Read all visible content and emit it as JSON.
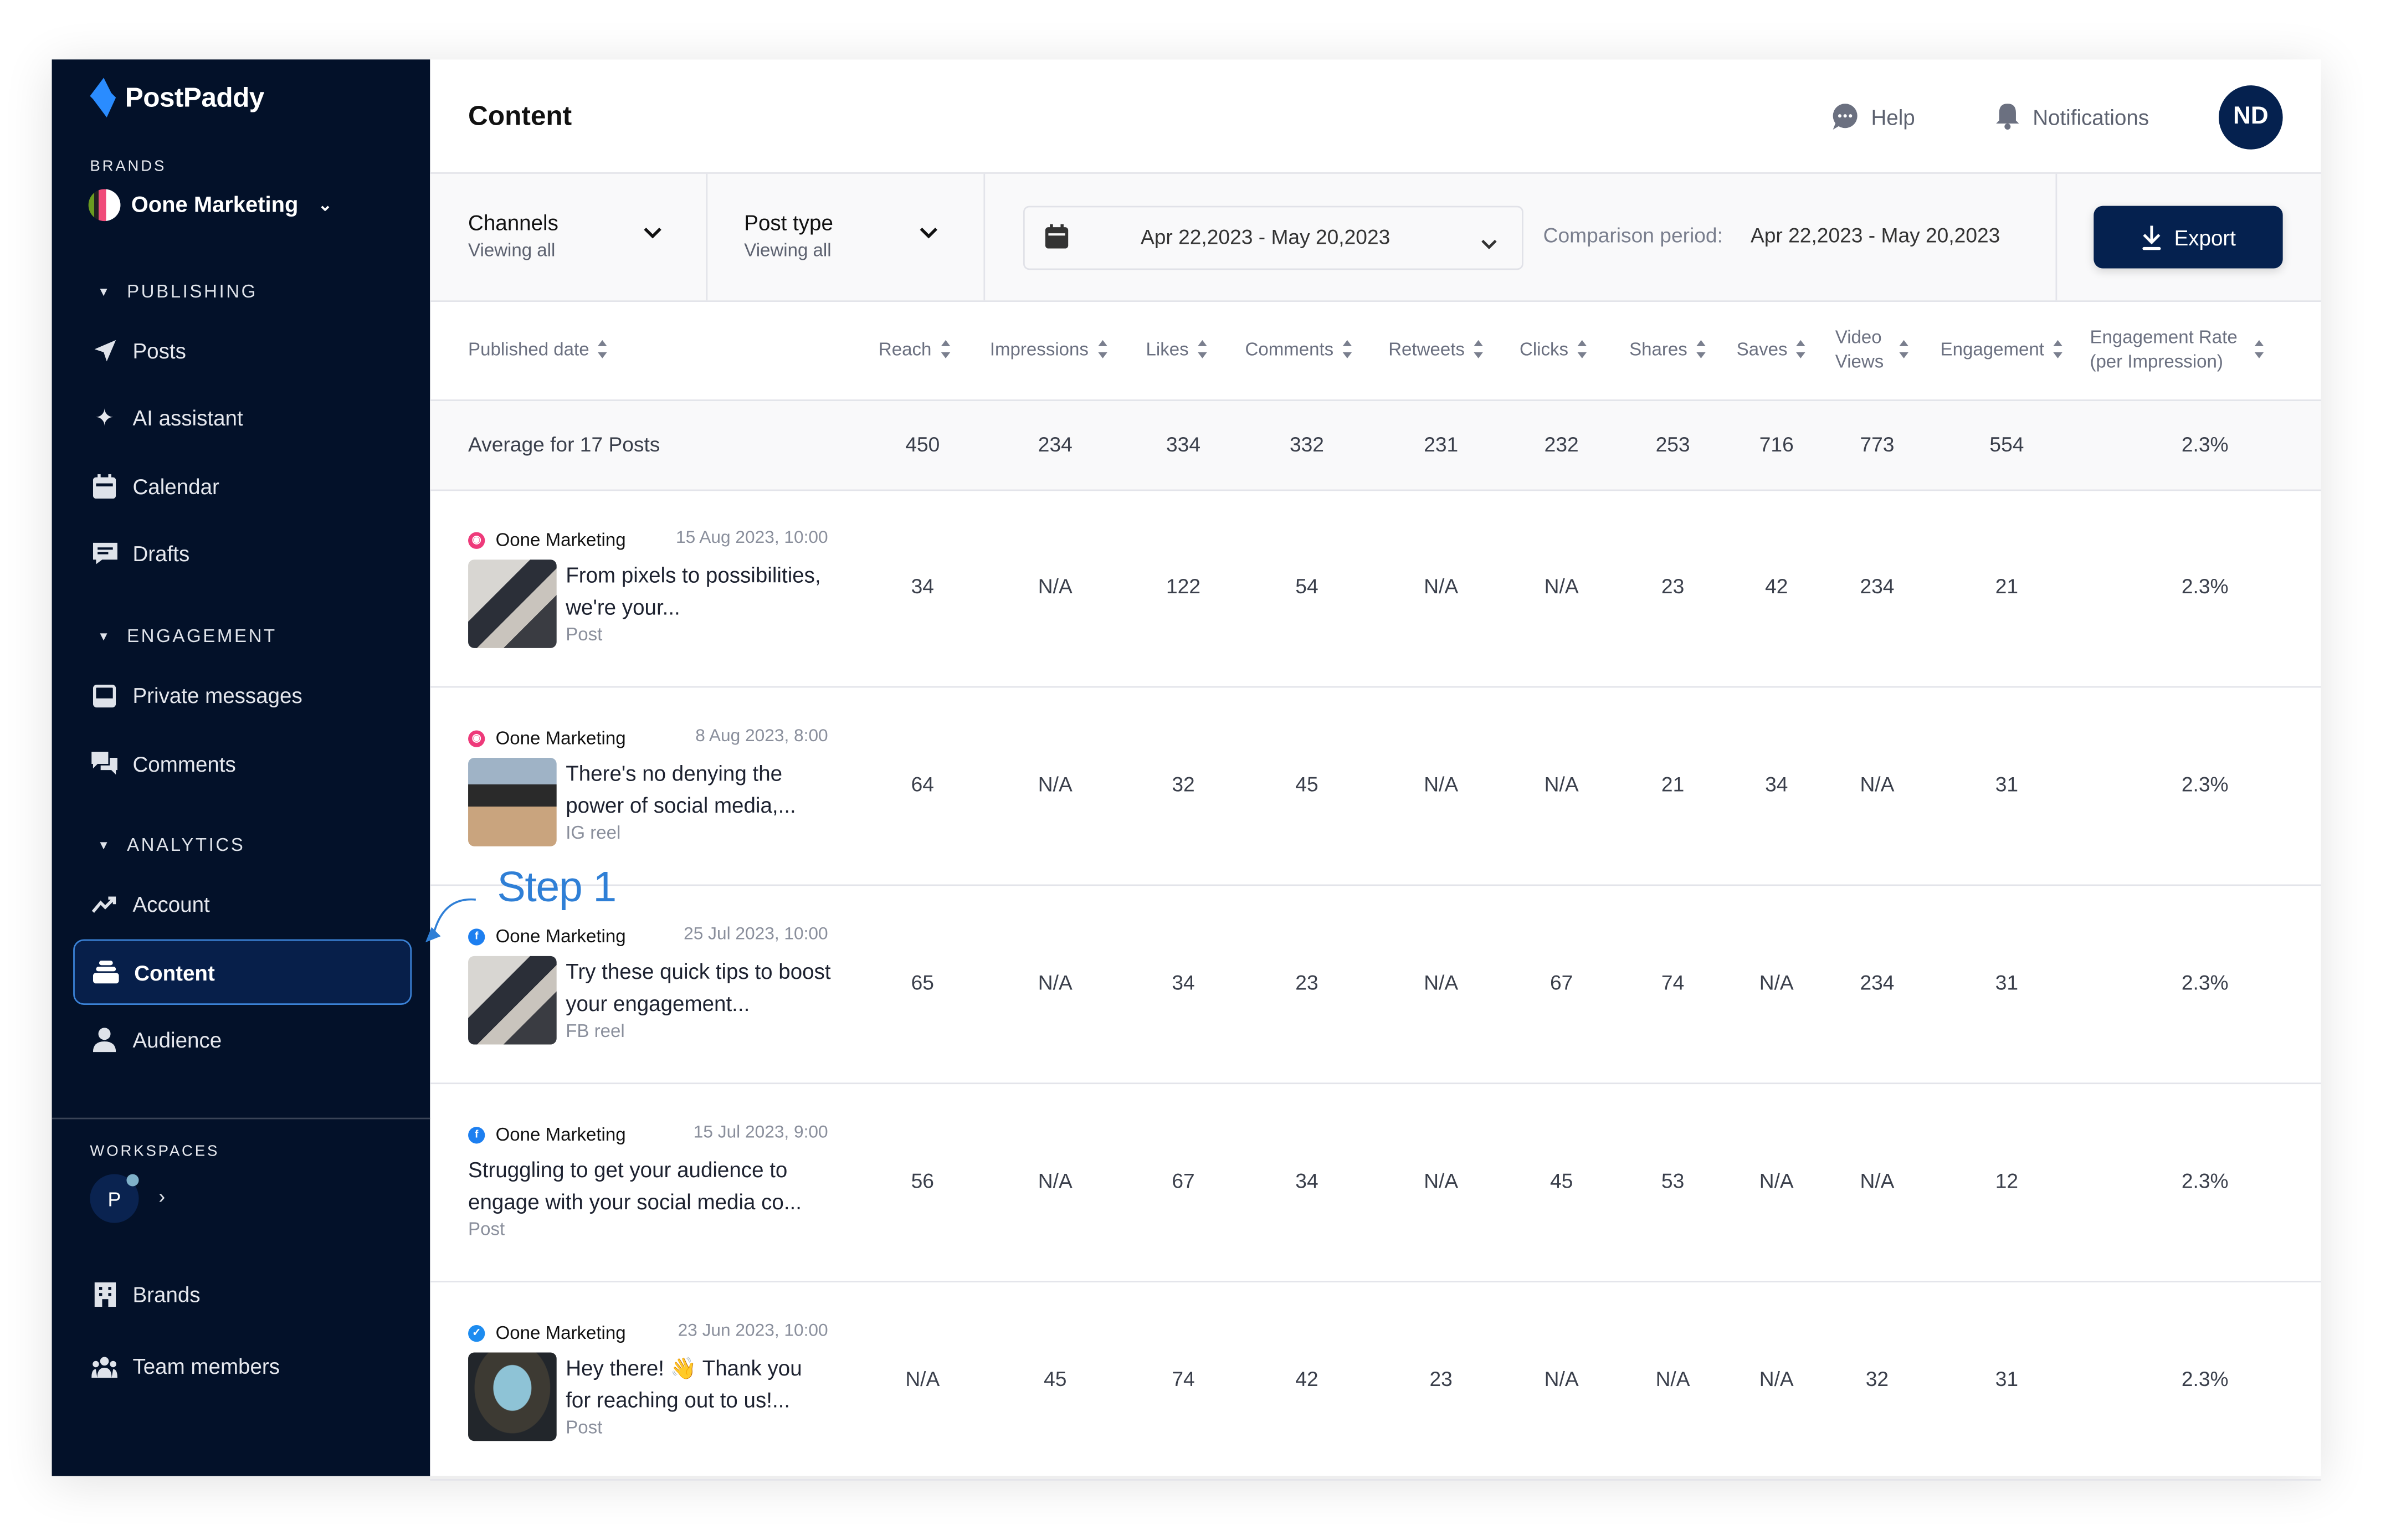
{
  "sidebar": {
    "logo": "PostPaddy",
    "brands_label": "BRANDS",
    "brand_name": "Oone Marketing",
    "groups": {
      "publishing": "PUBLISHING",
      "engagement": "ENGAGEMENT",
      "analytics": "ANALYTICS"
    },
    "items": {
      "posts": "Posts",
      "ai": "AI assistant",
      "calendar": "Calendar",
      "drafts": "Drafts",
      "private_messages": "Private messages",
      "comments": "Comments",
      "account": "Account",
      "content": "Content",
      "audience": "Audience",
      "brands": "Brands",
      "team": "Team members"
    },
    "workspaces_label": "WORKSPACES",
    "workspace_initial": "P"
  },
  "header": {
    "title": "Content",
    "help": "Help",
    "notifications": "Notifications",
    "avatar": "ND"
  },
  "filters": {
    "channels_label": "Channels",
    "channels_value": "Viewing all",
    "post_type_label": "Post type",
    "post_type_value": "Viewing all",
    "date_range": "Apr 22,2023 - May 20,2023",
    "comparison_label": "Comparison period:",
    "comparison_value": "Apr 22,2023 - May 20,2023",
    "export": "Export"
  },
  "annotation": "Step 1",
  "table": {
    "first_column": "Published date",
    "columns": [
      "Reach",
      "Impressions",
      "Likes",
      "Comments",
      "Retweets",
      "Clicks",
      "Shares",
      "Saves",
      "Video Views",
      "Engagement",
      "Engagement Rate (per Impression)"
    ],
    "average": {
      "label": "Average for 17 Posts",
      "values": [
        "450",
        "234",
        "334",
        "332",
        "231",
        "232",
        "253",
        "716",
        "773",
        "554",
        "2.3%"
      ]
    },
    "rows": [
      {
        "channel": "instagram",
        "brand": "Oone Marketing",
        "date": "15 Aug 2023, 10:00",
        "text": "From pixels to possibilities, we're your...",
        "type": "Post",
        "thumb": "desk",
        "values": [
          "34",
          "N/A",
          "122",
          "54",
          "N/A",
          "N/A",
          "23",
          "42",
          "234",
          "21",
          "2.3%"
        ]
      },
      {
        "channel": "instagram",
        "brand": "Oone Marketing",
        "date": "8 Aug 2023, 8:00",
        "text": "There's no denying the power of social media,...",
        "type": "IG reel",
        "thumb": "clapper",
        "values": [
          "64",
          "N/A",
          "32",
          "45",
          "N/A",
          "N/A",
          "21",
          "34",
          "N/A",
          "31",
          "2.3%"
        ]
      },
      {
        "channel": "facebook",
        "brand": "Oone Marketing",
        "date": "25 Jul 2023, 10:00",
        "text": "Try these quick tips to boost your engagement...",
        "type": "FB reel",
        "thumb": "desk",
        "values": [
          "65",
          "N/A",
          "34",
          "23",
          "N/A",
          "67",
          "74",
          "N/A",
          "234",
          "31",
          "2.3%"
        ]
      },
      {
        "channel": "facebook",
        "brand": "Oone Marketing",
        "date": "15 Jul 2023, 9:00",
        "text": "Struggling to get your audience to engage with your social media co...",
        "type": "Post",
        "thumb": "",
        "values": [
          "56",
          "N/A",
          "67",
          "34",
          "N/A",
          "45",
          "53",
          "N/A",
          "N/A",
          "12",
          "2.3%"
        ]
      },
      {
        "channel": "twitter",
        "brand": "Oone Marketing",
        "date": "23 Jun 2023, 10:00",
        "text": "Hey there! 👋 Thank you for reaching out to us!...",
        "type": "Post",
        "thumb": "arch",
        "values": [
          "N/A",
          "45",
          "74",
          "42",
          "23",
          "N/A",
          "N/A",
          "N/A",
          "32",
          "31",
          "2.3%"
        ]
      }
    ]
  },
  "colors": {
    "sidebar_bg": "#031129",
    "primary": "#05214f",
    "accent": "#2f7fd6",
    "instagram": "#ee3a7a",
    "facebook": "#1d7ff0",
    "twitter": "#1d8cf0"
  }
}
